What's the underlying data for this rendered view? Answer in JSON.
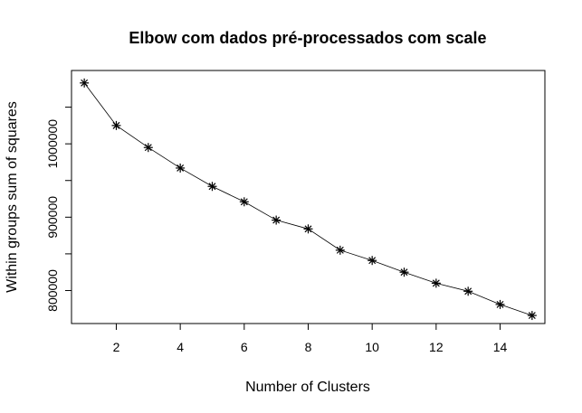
{
  "chart_data": {
    "type": "line",
    "title": "Elbow com dados pré-processados com scale",
    "xlabel": "Number of Clusters",
    "ylabel": "Within groups sum of squares",
    "xlim": [
      0.6,
      15.4
    ],
    "ylim": [
      755000,
      1100000
    ],
    "x_ticks": [
      2,
      4,
      6,
      8,
      10,
      12,
      14
    ],
    "y_ticks": [
      800000,
      850000,
      900000,
      950000,
      1000000,
      1050000
    ],
    "y_tick_labels": [
      {
        "value": 800000,
        "label": "800000"
      },
      {
        "value": 900000,
        "label": "900000"
      },
      {
        "value": 1000000,
        "label": "1000000"
      }
    ],
    "marker": "asterisk",
    "grid": false,
    "x": [
      1,
      2,
      3,
      4,
      5,
      6,
      7,
      8,
      9,
      10,
      11,
      12,
      13,
      14,
      15
    ],
    "values": [
      1083000,
      1025000,
      995000,
      967000,
      942000,
      921000,
      896000,
      884000,
      855000,
      841000,
      825000,
      810000,
      799000,
      781000,
      766000
    ]
  }
}
